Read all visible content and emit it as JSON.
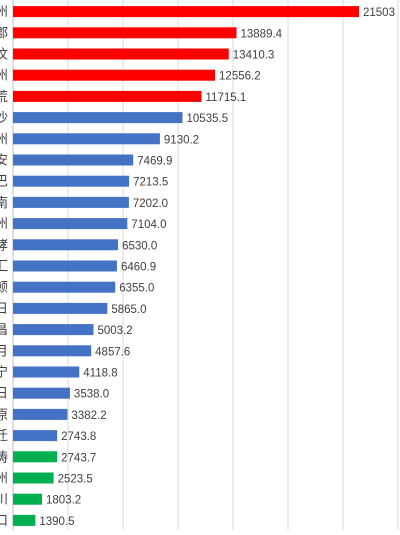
{
  "chart_data": {
    "type": "bar",
    "orientation": "horizontal",
    "grid": "vertical",
    "categories": [
      "州",
      "郡",
      "汶",
      "州",
      "荒",
      "沙",
      "州",
      "安",
      "巴",
      "南",
      "州",
      "哮",
      "汇",
      "顿",
      "日",
      "昌",
      "月",
      "宁",
      "日",
      "原",
      "迁",
      "涛",
      "州",
      "川",
      "口"
    ],
    "values": [
      21503,
      13889.4,
      13410.3,
      12556.2,
      11715.1,
      10535.5,
      9130.2,
      7469.9,
      7213.5,
      7202.0,
      7104.0,
      6530.0,
      6460.9,
      6355.0,
      5865.0,
      5003.2,
      4857.6,
      4118.8,
      3538.0,
      3382.2,
      2743.8,
      2743.7,
      2523.5,
      1803.2,
      1390.5
    ],
    "labels": [
      "21503",
      "13889.4",
      "13410.3",
      "12556.2",
      "11715.1",
      "10535.5",
      "9130.2",
      "7469.9",
      "7213.5",
      "7202.0",
      "7104.0",
      "6530.0",
      "6460.9",
      "6355.0",
      "5865.0",
      "5003.2",
      "4857.6",
      "4118.8",
      "3538.0",
      "3382.2",
      "2743.8",
      "2743.7",
      "2523.5",
      "1803.2",
      "1390.5"
    ],
    "groups": [
      "red",
      "red",
      "red",
      "red",
      "red",
      "blue",
      "blue",
      "blue",
      "blue",
      "blue",
      "blue",
      "blue",
      "blue",
      "blue",
      "blue",
      "blue",
      "blue",
      "blue",
      "blue",
      "blue",
      "blue",
      "green",
      "green",
      "green",
      "green"
    ],
    "colors": {
      "red": "#ff0000",
      "blue": "#4472c4",
      "green": "#00b050",
      "grid": "#d9d9d9",
      "text": "#404040",
      "axis": "#bfbfbf"
    }
  }
}
